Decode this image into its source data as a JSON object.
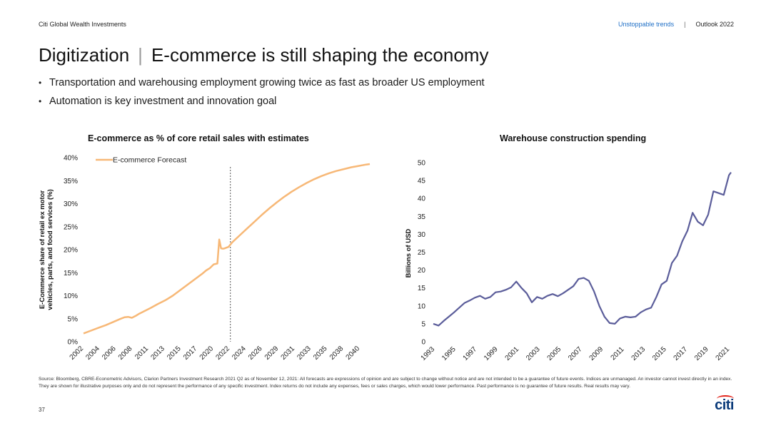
{
  "header": {
    "brand": "Citi Global Wealth Investments",
    "section_link": "Unstoppable trends",
    "separator": "|",
    "publication": "Outlook 2022"
  },
  "title": {
    "main": "Digitization",
    "divider": "|",
    "sub": "E-commerce is still shaping the economy"
  },
  "bullets": [
    "Transportation and warehousing employment growing twice as fast as broader US employment",
    "Automation is key investment and innovation goal"
  ],
  "chart_data": [
    {
      "type": "line",
      "title": "E-commerce as % of core retail sales with estimates",
      "ylabel_line1": "E-Commerce share of retail ex motor",
      "ylabel_line2": "vehicles, parts, and food services (%)",
      "ylim": [
        0,
        40
      ],
      "yticks": [
        "0%",
        "5%",
        "10%",
        "15%",
        "20%",
        "25%",
        "30%",
        "35%",
        "40%"
      ],
      "xticks": [
        "2002",
        "2004",
        "2006",
        "2008",
        "2011",
        "2013",
        "2015",
        "2017",
        "2020",
        "2022",
        "2024",
        "2026",
        "2029",
        "2031",
        "2033",
        "2035",
        "2038",
        "2040"
      ],
      "xlim": [
        2002,
        2040.5
      ],
      "forecast_start": 2021.75,
      "legend": "E-commerce Forecast",
      "legend_position": "top-left",
      "color": "#f7b877",
      "series": [
        {
          "x": [
            2002,
            2003,
            2004,
            2005,
            2006,
            2007,
            2007.5,
            2008,
            2008.5,
            2009,
            2009.5,
            2010,
            2011,
            2012,
            2013,
            2014,
            2015,
            2016,
            2017,
            2018,
            2018.5,
            2019,
            2019.5,
            2020,
            2020.25,
            2020.5,
            2020.75,
            2021,
            2021.5,
            2022,
            2023,
            2024,
            2025,
            2026,
            2027,
            2028,
            2029,
            2030,
            2031,
            2032,
            2033,
            2034,
            2035,
            2036,
            2037,
            2038,
            2039,
            2040,
            2040.5
          ],
          "values": [
            1.8,
            2.4,
            3.0,
            3.6,
            4.3,
            5.0,
            5.3,
            5.4,
            5.2,
            5.6,
            6.1,
            6.5,
            7.3,
            8.2,
            9.0,
            10.0,
            11.2,
            12.4,
            13.6,
            14.8,
            15.5,
            16.0,
            16.8,
            17.0,
            22.2,
            20.3,
            20.2,
            20.3,
            20.6,
            21.6,
            23.1,
            24.6,
            26.1,
            27.6,
            29.0,
            30.3,
            31.5,
            32.6,
            33.6,
            34.5,
            35.3,
            36.0,
            36.6,
            37.1,
            37.5,
            37.9,
            38.2,
            38.5,
            38.6
          ]
        }
      ]
    },
    {
      "type": "line",
      "title": "Warehouse construction spending",
      "ylabel": "Billions of USD",
      "ylim": [
        0,
        50
      ],
      "yticks": [
        "0",
        "5",
        "10",
        "15",
        "20",
        "25",
        "30",
        "35",
        "40",
        "45",
        "50"
      ],
      "xticks": [
        "1993",
        "1995",
        "1997",
        "1999",
        "2001",
        "2003",
        "2005",
        "2007",
        "2009",
        "2011",
        "2013",
        "2015",
        "2017",
        "2019",
        "2021"
      ],
      "xlim": [
        1993,
        2021.7
      ],
      "color": "#5b5d9a",
      "series": [
        {
          "x": [
            1993,
            1993.5,
            1994,
            1994.5,
            1995,
            1995.5,
            1996,
            1996.5,
            1997,
            1997.5,
            1998,
            1998.5,
            1999,
            1999.5,
            2000,
            2000.5,
            2001,
            2001.5,
            2002,
            2002.5,
            2003,
            2003.5,
            2004,
            2004.5,
            2005,
            2005.5,
            2006,
            2006.5,
            2007,
            2007.5,
            2008,
            2008.5,
            2009,
            2009.5,
            2010,
            2010.5,
            2011,
            2011.5,
            2012,
            2012.5,
            2013,
            2013.5,
            2014,
            2014.5,
            2015,
            2015.5,
            2016,
            2016.5,
            2017,
            2017.5,
            2018,
            2018.5,
            2019,
            2019.5,
            2020,
            2020.5,
            2021,
            2021.5,
            2021.7
          ],
          "values": [
            5.0,
            4.5,
            5.8,
            7.0,
            8.2,
            9.5,
            10.8,
            11.5,
            12.3,
            12.8,
            12.0,
            12.5,
            13.8,
            14.0,
            14.5,
            15.2,
            16.8,
            15.0,
            13.5,
            11.0,
            12.5,
            12.0,
            12.8,
            13.3,
            12.7,
            13.5,
            14.5,
            15.5,
            17.5,
            17.8,
            17.0,
            14.0,
            10.0,
            7.0,
            5.2,
            5.0,
            6.5,
            7.0,
            6.8,
            7.0,
            8.2,
            9.0,
            9.5,
            12.5,
            16.0,
            17.0,
            22.0,
            24.0,
            28.0,
            31.0,
            36.0,
            33.5,
            32.5,
            35.5,
            42.0,
            41.5,
            41.0,
            46.5,
            47.3
          ]
        }
      ]
    }
  ],
  "footer": {
    "source": "Source: Bloomberg, CBRE-Econometric Advisors, Clarion Partners Investment Research 2021 Q2 as of November 12, 2021: All forecasts are expressions of opinion and are subject to change without notice and are not intended to be a guarantee of future events. Indices are unmanaged. An investor cannot invest directly in an index. They are shown for illustrative purposes only and do not represent the performance of any specific investment. Index returns do not include any expenses, fees or sales charges, which would lower performance. Past performance is no guarantee of future results. Real results may vary.",
    "page_number": "37",
    "logo_text": "citi"
  }
}
